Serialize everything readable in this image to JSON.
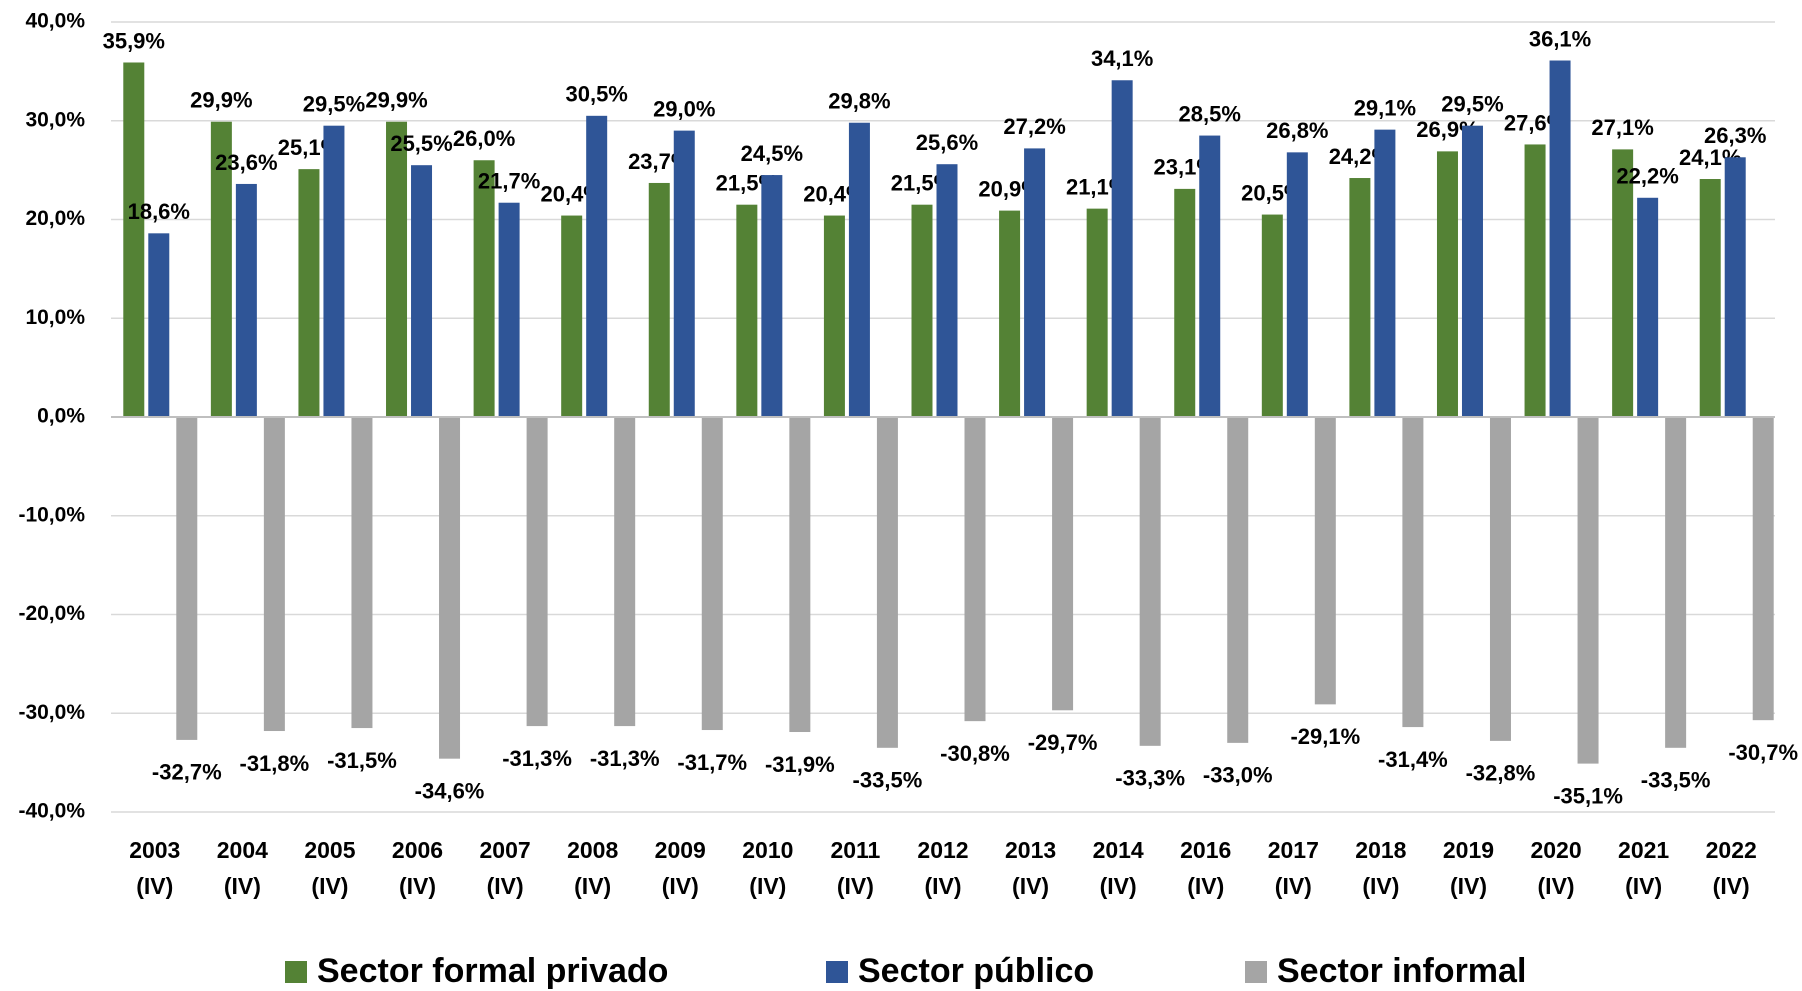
{
  "chart_data": {
    "type": "bar",
    "categories": [
      "2003 (IV)",
      "2004 (IV)",
      "2005 (IV)",
      "2006 (IV)",
      "2007 (IV)",
      "2008 (IV)",
      "2009 (IV)",
      "2010 (IV)",
      "2011 (IV)",
      "2012 (IV)",
      "2013 (IV)",
      "2014 (IV)",
      "2016 (IV)",
      "2017 (IV)",
      "2018 (IV)",
      "2019 (IV)",
      "2020 (IV)",
      "2021 (IV)",
      "2022 (IV)"
    ],
    "series": [
      {
        "name": "Sector formal privado",
        "color": "#548235",
        "values": [
          35.9,
          29.9,
          25.1,
          29.9,
          26.0,
          20.4,
          23.7,
          21.5,
          20.4,
          21.5,
          20.9,
          21.1,
          23.1,
          20.5,
          24.2,
          26.9,
          27.6,
          27.1,
          24.1
        ],
        "value_labels": [
          "35,9%",
          "29,9%",
          "25,1%",
          "29,9%",
          "26,0%",
          "20,4%",
          "23,7%",
          "21,5%",
          "20,4%",
          "21,5%",
          "20,9%",
          "21,1%",
          "23,1%",
          "20,5%",
          "24,2%",
          "26,9%",
          "27,6%",
          "27,1%",
          "24,1%"
        ]
      },
      {
        "name": "Sector público",
        "color": "#2f5597",
        "values": [
          18.6,
          23.6,
          29.5,
          25.5,
          21.7,
          30.5,
          29.0,
          24.5,
          29.8,
          25.6,
          27.2,
          34.1,
          28.5,
          26.8,
          29.1,
          29.5,
          36.1,
          22.2,
          26.3
        ],
        "value_labels": [
          "18,6%",
          "23,6%",
          "29,5%",
          "25,5%",
          "21,7%",
          "30,5%",
          "29,0%",
          "24,5%",
          "29,8%",
          "25,6%",
          "27,2%",
          "34,1%",
          "28,5%",
          "26,8%",
          "29,1%",
          "29,5%",
          "36,1%",
          "22,2%",
          "26,3%"
        ]
      },
      {
        "name": "Sector informal",
        "color": "#a5a5a5",
        "values": [
          -32.7,
          -31.8,
          -31.5,
          -34.6,
          -31.3,
          -31.3,
          -31.7,
          -31.9,
          -33.5,
          -30.8,
          -29.7,
          -33.3,
          -33.0,
          -29.1,
          -31.4,
          -32.8,
          -35.1,
          -33.5,
          -30.7
        ],
        "value_labels": [
          "-32,7%",
          "-31,8%",
          "-31,5%",
          "-34,6%",
          "-31,3%",
          "-31,3%",
          "-31,7%",
          "-31,9%",
          "-33,5%",
          "-30,8%",
          "-29,7%",
          "-33,3%",
          "-33,0%",
          "-29,1%",
          "-31,4%",
          "-32,8%",
          "-35,1%",
          "-33,5%",
          "-30,7%"
        ]
      }
    ],
    "ylim": [
      -40,
      40
    ],
    "yticks": [
      {
        "value": -40,
        "label": "-40,0%"
      },
      {
        "value": -30,
        "label": "-30,0%"
      },
      {
        "value": -20,
        "label": "-20,0%"
      },
      {
        "value": -10,
        "label": "-10,0%"
      },
      {
        "value": 0,
        "label": "0,0%"
      },
      {
        "value": 10,
        "label": "10,0%"
      },
      {
        "value": 20,
        "label": "20,0%"
      },
      {
        "value": 30,
        "label": "30,0%"
      },
      {
        "value": 40,
        "label": "40,0%"
      }
    ],
    "grid": true,
    "legend": "bottom"
  }
}
